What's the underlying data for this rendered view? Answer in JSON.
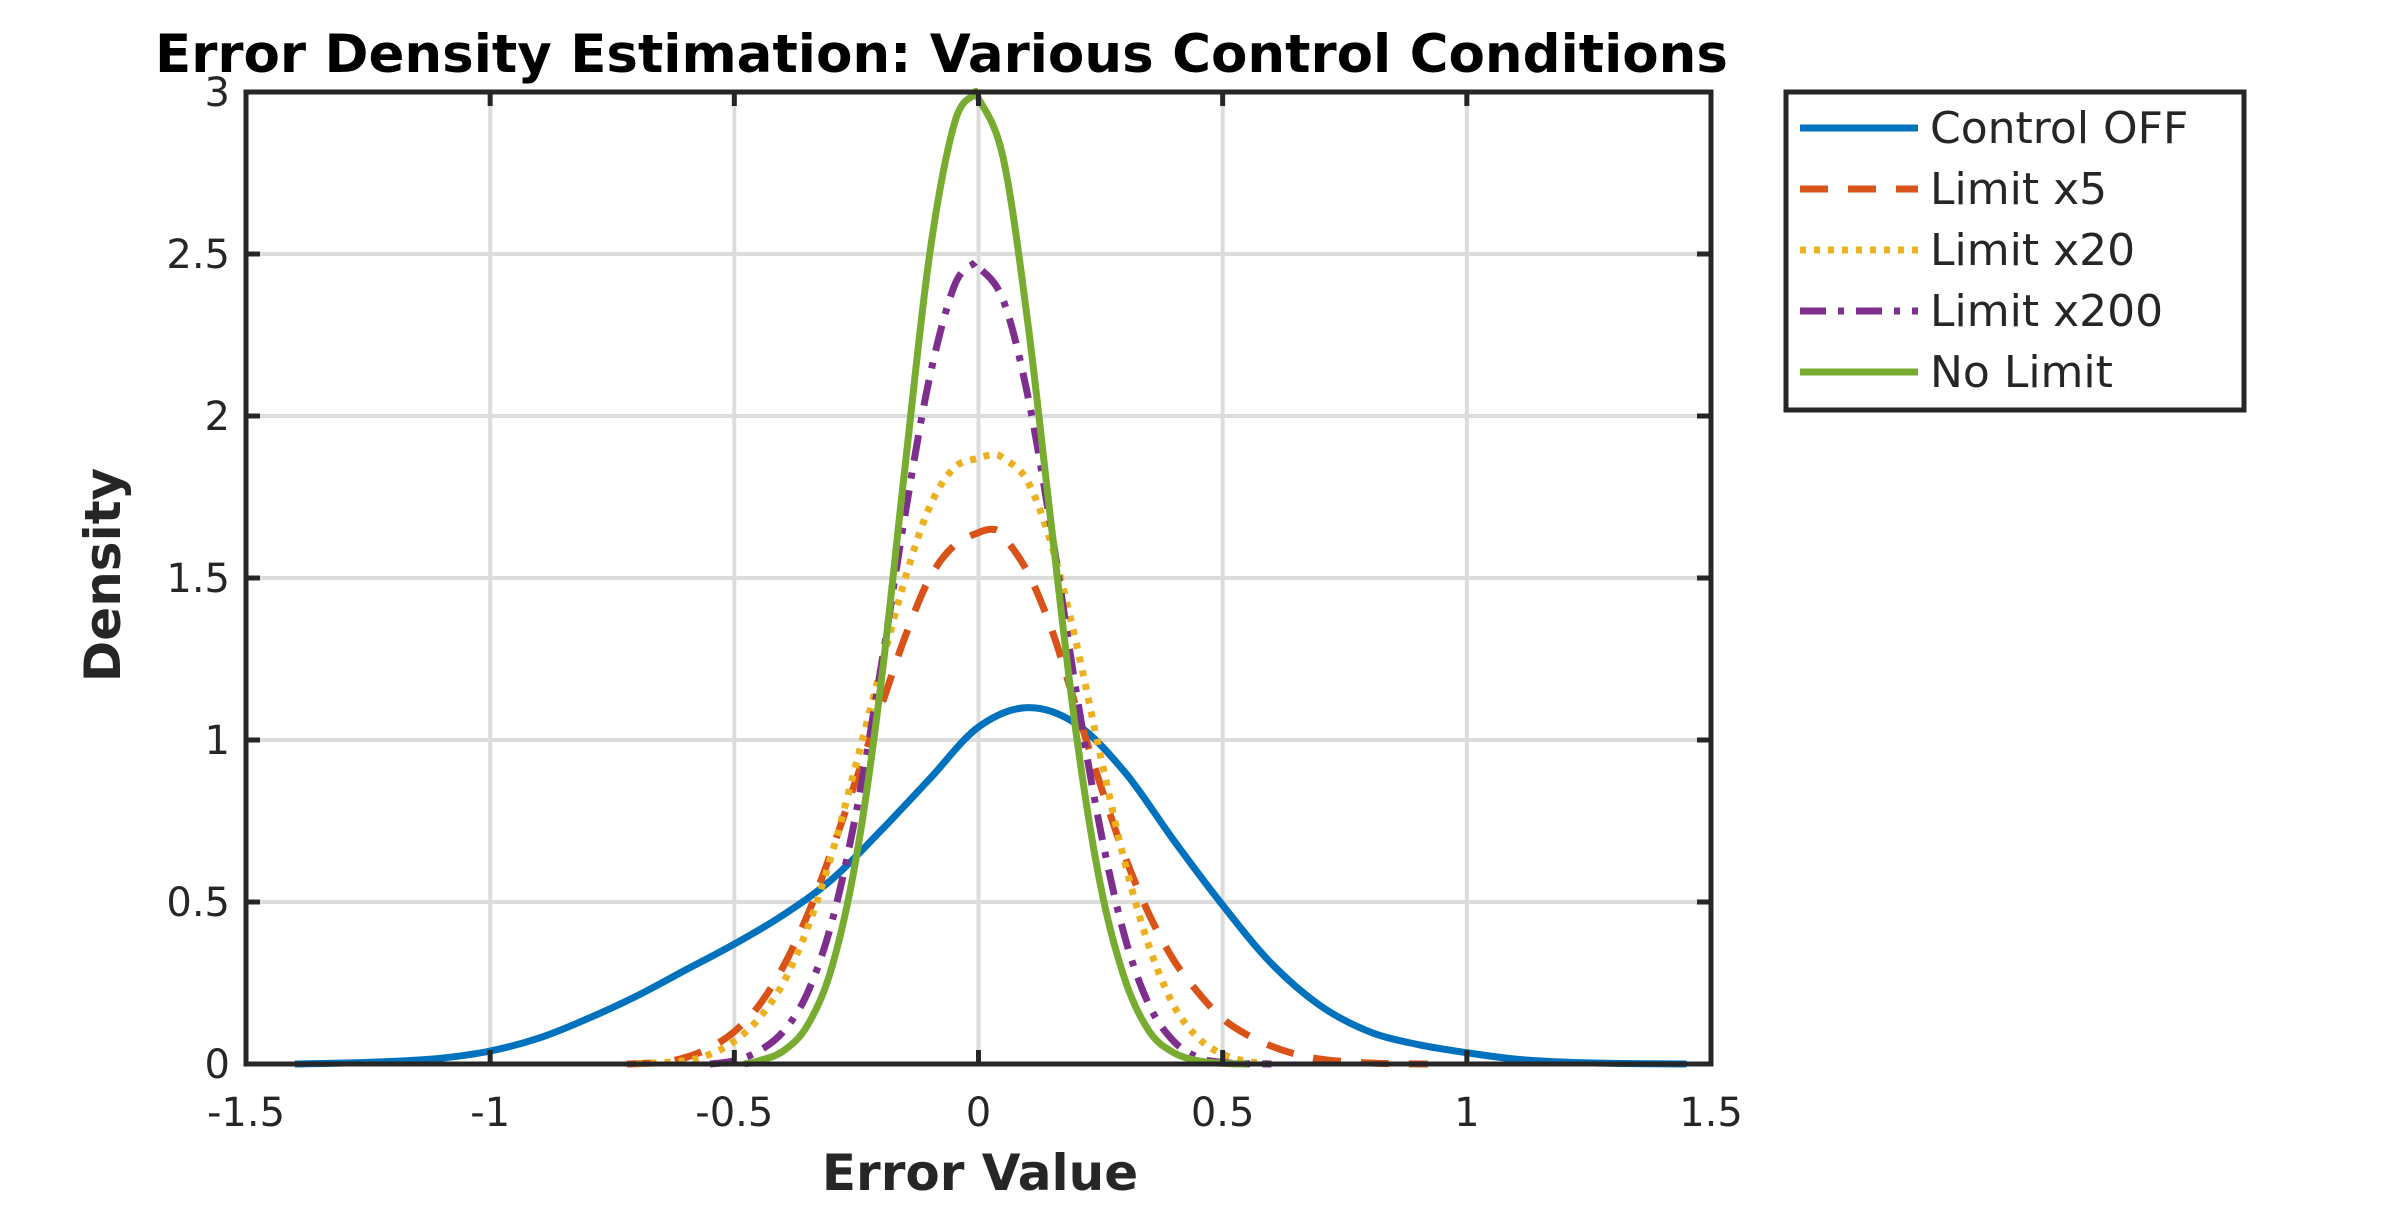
{
  "chart_data": {
    "type": "line",
    "title": "Error Density Estimation: Various Control Conditions",
    "xlabel": "Error Value",
    "ylabel": "Density",
    "xlim": [
      -1.5,
      1.5
    ],
    "ylim": [
      0,
      3
    ],
    "xticks": [
      -1.5,
      -1,
      -0.5,
      0,
      0.5,
      1,
      1.5
    ],
    "xtick_labels": [
      "-1.5",
      "-1",
      "-0.5",
      "0",
      "0.5",
      "1",
      "1.5"
    ],
    "yticks": [
      0,
      0.5,
      1,
      1.5,
      2,
      2.5,
      3
    ],
    "ytick_labels": [
      "0",
      "0.5",
      "1",
      "1.5",
      "2",
      "2.5",
      "3"
    ],
    "grid": true,
    "legend_position": "outside-top-right",
    "series": [
      {
        "name": "Control OFF",
        "color": "#0072BD",
        "dash": "solid",
        "x": [
          -1.4,
          -1.3,
          -1.2,
          -1.1,
          -1.0,
          -0.9,
          -0.8,
          -0.7,
          -0.6,
          -0.5,
          -0.4,
          -0.3,
          -0.2,
          -0.1,
          0.0,
          0.1,
          0.2,
          0.3,
          0.4,
          0.5,
          0.6,
          0.7,
          0.8,
          0.9,
          1.0,
          1.1,
          1.2,
          1.3,
          1.45
        ],
        "y": [
          0.0,
          0.003,
          0.008,
          0.018,
          0.04,
          0.08,
          0.14,
          0.21,
          0.29,
          0.37,
          0.46,
          0.57,
          0.72,
          0.88,
          1.04,
          1.1,
          1.05,
          0.9,
          0.69,
          0.49,
          0.31,
          0.18,
          0.1,
          0.06,
          0.035,
          0.015,
          0.006,
          0.002,
          0.0
        ]
      },
      {
        "name": "Limit x5",
        "color": "#D95319",
        "dash": "dashed",
        "x": [
          -0.72,
          -0.65,
          -0.6,
          -0.55,
          -0.5,
          -0.45,
          -0.4,
          -0.35,
          -0.3,
          -0.25,
          -0.2,
          -0.15,
          -0.1,
          -0.05,
          0.0,
          0.03,
          0.05,
          0.1,
          0.15,
          0.2,
          0.25,
          0.3,
          0.35,
          0.4,
          0.45,
          0.5,
          0.55,
          0.6,
          0.65,
          0.7,
          0.75,
          0.8,
          0.85,
          0.92
        ],
        "y": [
          0.0,
          0.005,
          0.02,
          0.05,
          0.1,
          0.18,
          0.3,
          0.46,
          0.66,
          0.88,
          1.1,
          1.32,
          1.5,
          1.6,
          1.64,
          1.65,
          1.63,
          1.52,
          1.34,
          1.1,
          0.86,
          0.64,
          0.46,
          0.32,
          0.22,
          0.14,
          0.09,
          0.055,
          0.03,
          0.015,
          0.007,
          0.003,
          0.001,
          0.0
        ]
      },
      {
        "name": "Limit x20",
        "color": "#EDB120",
        "dash": "dotted",
        "x": [
          -0.7,
          -0.6,
          -0.55,
          -0.5,
          -0.45,
          -0.4,
          -0.35,
          -0.3,
          -0.25,
          -0.2,
          -0.15,
          -0.1,
          -0.05,
          0.0,
          0.03,
          0.05,
          0.1,
          0.15,
          0.2,
          0.25,
          0.3,
          0.35,
          0.4,
          0.45,
          0.5,
          0.55,
          0.6
        ],
        "y": [
          0.0,
          0.01,
          0.03,
          0.07,
          0.14,
          0.25,
          0.42,
          0.65,
          0.93,
          1.22,
          1.5,
          1.72,
          1.84,
          1.87,
          1.88,
          1.87,
          1.8,
          1.6,
          1.3,
          0.95,
          0.62,
          0.36,
          0.18,
          0.08,
          0.03,
          0.008,
          0.0
        ]
      },
      {
        "name": "Limit x200",
        "color": "#7E2F8E",
        "dash": "dashdot",
        "x": [
          -0.55,
          -0.5,
          -0.45,
          -0.4,
          -0.35,
          -0.3,
          -0.25,
          -0.2,
          -0.15,
          -0.1,
          -0.05,
          -0.01,
          0.0,
          0.05,
          0.1,
          0.15,
          0.2,
          0.25,
          0.3,
          0.35,
          0.4,
          0.45,
          0.5,
          0.55,
          0.6
        ],
        "y": [
          0.0,
          0.01,
          0.04,
          0.1,
          0.22,
          0.44,
          0.78,
          1.22,
          1.7,
          2.12,
          2.4,
          2.47,
          2.46,
          2.36,
          2.07,
          1.64,
          1.15,
          0.72,
          0.39,
          0.18,
          0.07,
          0.02,
          0.005,
          0.001,
          0.0
        ]
      },
      {
        "name": "No Limit",
        "color": "#77AC30",
        "dash": "solid",
        "x": [
          -0.48,
          -0.45,
          -0.4,
          -0.35,
          -0.3,
          -0.25,
          -0.2,
          -0.15,
          -0.1,
          -0.05,
          -0.01,
          0.0,
          0.05,
          0.1,
          0.15,
          0.2,
          0.25,
          0.3,
          0.35,
          0.4,
          0.45,
          0.5,
          0.55
        ],
        "y": [
          0.0,
          0.01,
          0.04,
          0.12,
          0.3,
          0.64,
          1.17,
          1.85,
          2.5,
          2.9,
          2.99,
          2.98,
          2.8,
          2.3,
          1.65,
          1.02,
          0.55,
          0.26,
          0.1,
          0.035,
          0.01,
          0.002,
          0.0
        ]
      }
    ]
  }
}
